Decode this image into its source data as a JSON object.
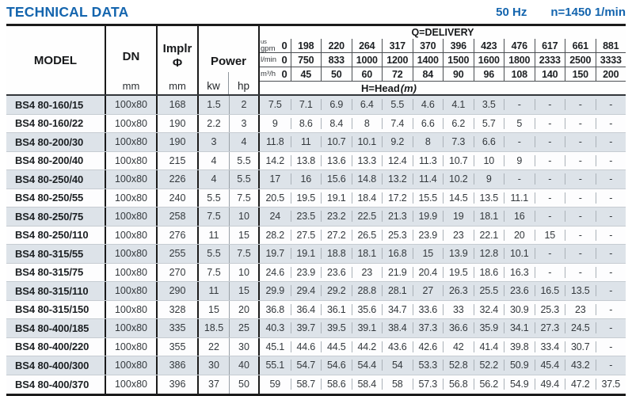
{
  "title": "TECHNICAL DATA",
  "frequency": "50 Hz",
  "speed": "n=1450 1/min",
  "colors": {
    "accent_blue": "#1465ae",
    "row_stripe": "#dde3e9",
    "row_white": "#fdfdfe",
    "border_dark": "#1b1b1b",
    "grid_light": "#aab1b8"
  },
  "table": {
    "columns": {
      "model": "MODEL",
      "dn": "DN",
      "implr": "Implr",
      "implr_symbol": "Φ",
      "power": "Power",
      "mm": "mm",
      "kw": "kw",
      "hp": "hp"
    },
    "delivery": {
      "title": "Q=DELIVERY",
      "head_label": "H=Head",
      "head_unit": "(m)",
      "unit_rows": [
        {
          "label_top": "us",
          "label": "gpm",
          "zero": "0",
          "values": [
            "198",
            "220",
            "264",
            "317",
            "370",
            "396",
            "423",
            "476",
            "617",
            "661",
            "881"
          ]
        },
        {
          "label": "l/min",
          "zero": "0",
          "values": [
            "750",
            "833",
            "1000",
            "1200",
            "1400",
            "1500",
            "1600",
            "1800",
            "2333",
            "2500",
            "3333"
          ]
        },
        {
          "label": "m³/h",
          "zero": "0",
          "values": [
            "45",
            "50",
            "60",
            "72",
            "84",
            "90",
            "96",
            "108",
            "140",
            "150",
            "200"
          ]
        }
      ]
    },
    "rows": [
      {
        "model": "BS4 80-160/15",
        "dn": "100x80",
        "impeller": "168",
        "kw": "1.5",
        "hp": "2",
        "heads": [
          "7.5",
          "7.1",
          "6.9",
          "6.4",
          "5.5",
          "4.6",
          "4.1",
          "3.5",
          "-",
          "-",
          "-",
          "-"
        ]
      },
      {
        "model": "BS4 80-160/22",
        "dn": "100x80",
        "impeller": "190",
        "kw": "2.2",
        "hp": "3",
        "heads": [
          "9",
          "8.6",
          "8.4",
          "8",
          "7.4",
          "6.6",
          "6.2",
          "5.7",
          "5",
          "-",
          "-",
          "-"
        ]
      },
      {
        "model": "BS4 80-200/30",
        "dn": "100x80",
        "impeller": "190",
        "kw": "3",
        "hp": "4",
        "heads": [
          "11.8",
          "11",
          "10.7",
          "10.1",
          "9.2",
          "8",
          "7.3",
          "6.6",
          "-",
          "-",
          "-",
          "-"
        ]
      },
      {
        "model": "BS4 80-200/40",
        "dn": "100x80",
        "impeller": "215",
        "kw": "4",
        "hp": "5.5",
        "heads": [
          "14.2",
          "13.8",
          "13.6",
          "13.3",
          "12.4",
          "11.3",
          "10.7",
          "10",
          "9",
          "-",
          "-",
          "-"
        ]
      },
      {
        "model": "BS4 80-250/40",
        "dn": "100x80",
        "impeller": "226",
        "kw": "4",
        "hp": "5.5",
        "heads": [
          "17",
          "16",
          "15.6",
          "14.8",
          "13.2",
          "11.4",
          "10.2",
          "9",
          "-",
          "-",
          "-",
          "-"
        ]
      },
      {
        "model": "BS4 80-250/55",
        "dn": "100x80",
        "impeller": "240",
        "kw": "5.5",
        "hp": "7.5",
        "heads": [
          "20.5",
          "19.5",
          "19.1",
          "18.4",
          "17.2",
          "15.5",
          "14.5",
          "13.5",
          "11.1",
          "-",
          "-",
          "-"
        ]
      },
      {
        "model": "BS4 80-250/75",
        "dn": "100x80",
        "impeller": "258",
        "kw": "7.5",
        "hp": "10",
        "heads": [
          "24",
          "23.5",
          "23.2",
          "22.5",
          "21.3",
          "19.9",
          "19",
          "18.1",
          "16",
          "-",
          "-",
          "-"
        ]
      },
      {
        "model": "BS4 80-250/110",
        "dn": "100x80",
        "impeller": "276",
        "kw": "11",
        "hp": "15",
        "heads": [
          "28.2",
          "27.5",
          "27.2",
          "26.5",
          "25.3",
          "23.9",
          "23",
          "22.1",
          "20",
          "15",
          "-",
          "-"
        ]
      },
      {
        "model": "BS4 80-315/55",
        "dn": "100x80",
        "impeller": "255",
        "kw": "5.5",
        "hp": "7.5",
        "heads": [
          "19.7",
          "19.1",
          "18.8",
          "18.1",
          "16.8",
          "15",
          "13.9",
          "12.8",
          "10.1",
          "-",
          "-",
          "-"
        ]
      },
      {
        "model": "BS4 80-315/75",
        "dn": "100x80",
        "impeller": "270",
        "kw": "7.5",
        "hp": "10",
        "heads": [
          "24.6",
          "23.9",
          "23.6",
          "23",
          "21.9",
          "20.4",
          "19.5",
          "18.6",
          "16.3",
          "-",
          "-",
          "-"
        ]
      },
      {
        "model": "BS4 80-315/110",
        "dn": "100x80",
        "impeller": "290",
        "kw": "11",
        "hp": "15",
        "heads": [
          "29.9",
          "29.4",
          "29.2",
          "28.8",
          "28.1",
          "27",
          "26.3",
          "25.5",
          "23.6",
          "16.5",
          "13.5",
          "-"
        ]
      },
      {
        "model": "BS4 80-315/150",
        "dn": "100x80",
        "impeller": "328",
        "kw": "15",
        "hp": "20",
        "heads": [
          "36.8",
          "36.4",
          "36.1",
          "35.6",
          "34.7",
          "33.6",
          "33",
          "32.4",
          "30.9",
          "25.3",
          "23",
          "-"
        ]
      },
      {
        "model": "BS4 80-400/185",
        "dn": "100x80",
        "impeller": "335",
        "kw": "18.5",
        "hp": "25",
        "heads": [
          "40.3",
          "39.7",
          "39.5",
          "39.1",
          "38.4",
          "37.3",
          "36.6",
          "35.9",
          "34.1",
          "27.3",
          "24.5",
          "-"
        ]
      },
      {
        "model": "BS4 80-400/220",
        "dn": "100x80",
        "impeller": "355",
        "kw": "22",
        "hp": "30",
        "heads": [
          "45.1",
          "44.6",
          "44.5",
          "44.2",
          "43.6",
          "42.6",
          "42",
          "41.4",
          "39.8",
          "33.4",
          "30.7",
          "-"
        ]
      },
      {
        "model": "BS4 80-400/300",
        "dn": "100x80",
        "impeller": "386",
        "kw": "30",
        "hp": "40",
        "heads": [
          "55.1",
          "54.7",
          "54.6",
          "54.4",
          "54",
          "53.3",
          "52.8",
          "52.2",
          "50.9",
          "45.4",
          "43.2",
          "-"
        ]
      },
      {
        "model": "BS4 80-400/370",
        "dn": "100x80",
        "impeller": "396",
        "kw": "37",
        "hp": "50",
        "heads": [
          "59",
          "58.7",
          "58.6",
          "58.4",
          "58",
          "57.3",
          "56.8",
          "56.2",
          "54.9",
          "49.4",
          "47.2",
          "37.5"
        ]
      }
    ]
  }
}
